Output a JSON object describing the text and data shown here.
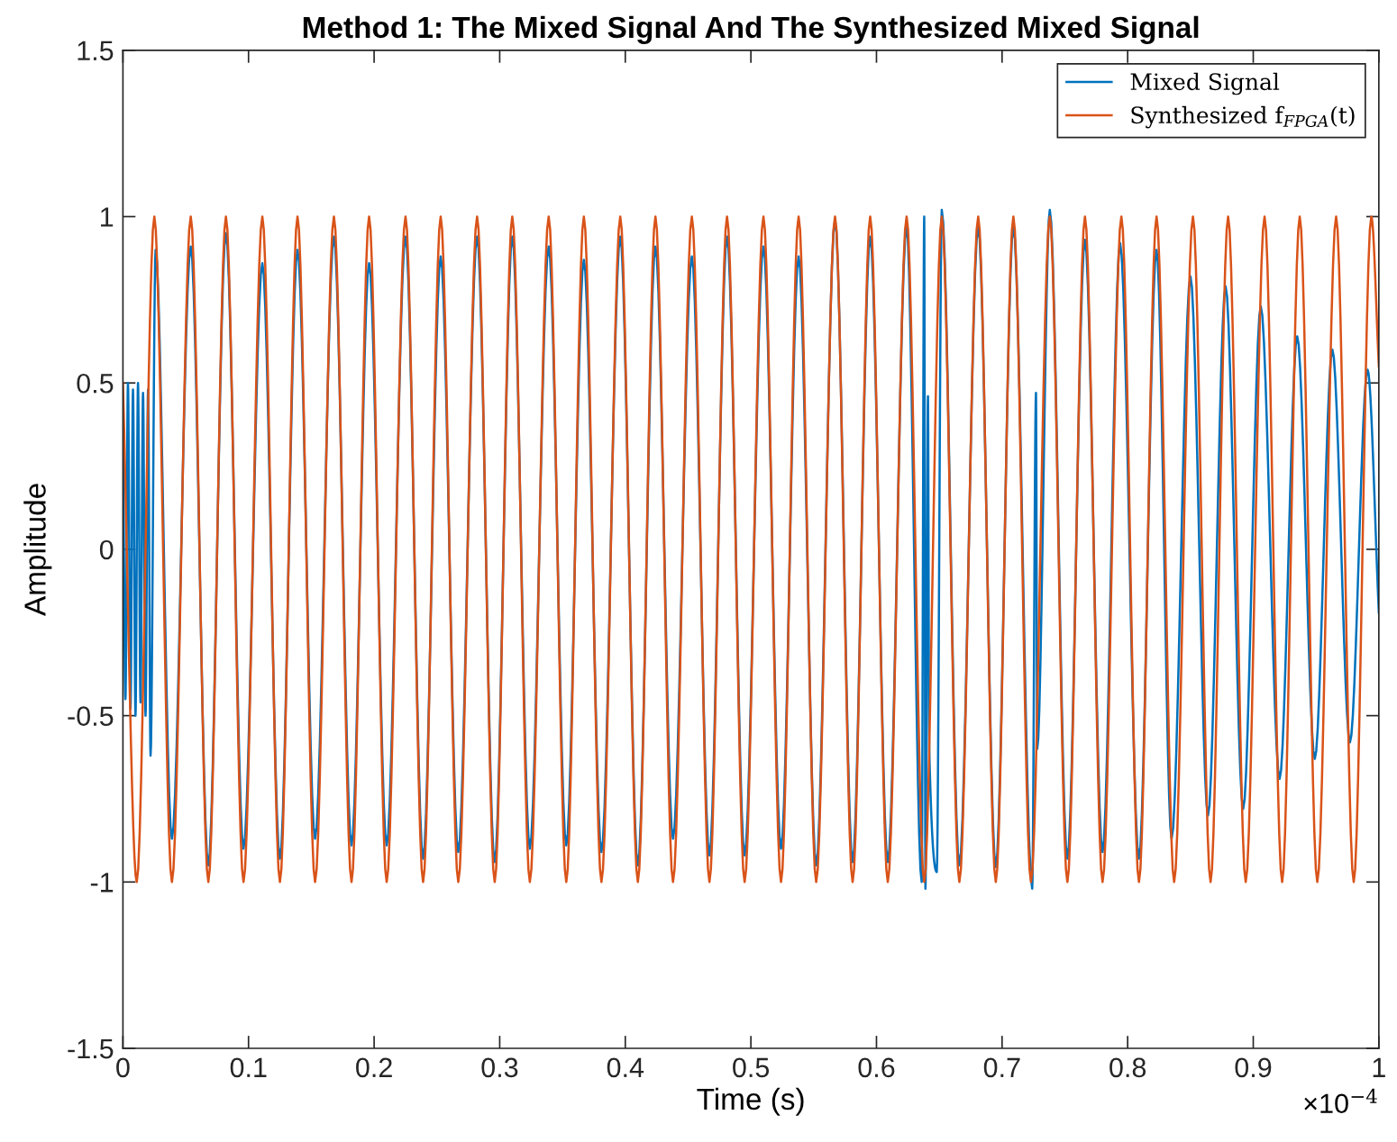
{
  "chart_data": {
    "type": "line",
    "title": "Method 1: The Mixed Signal And The Synthesized Mixed Signal",
    "xlabel": "Time (s)",
    "ylabel": "Amplitude",
    "xlim": [
      0,
      1
    ],
    "xticks": [
      0,
      0.1,
      0.2,
      0.3,
      0.4,
      0.5,
      0.6,
      0.7,
      0.8,
      0.9,
      1
    ],
    "ylim": [
      -1.5,
      1.5
    ],
    "yticks": [
      -1.5,
      -1,
      -0.5,
      0,
      0.5,
      1,
      1.5
    ],
    "annotations": [
      "×10$^{−4}$"
    ],
    "grid": false,
    "legend": "top right",
    "marker": "none",
    "line_style": "solid",
    "series": [
      {
        "name": "Mixed Signal",
        "color": "#0072bd",
        "x": [
          0,
          0.002,
          0.004,
          0.006,
          0.008,
          0.01,
          0.012,
          0.014,
          0.016,
          0.018,
          0.02,
          0.022,
          0.026,
          0.039,
          0.054,
          0.068,
          0.082,
          0.096,
          0.111,
          0.125,
          0.139,
          0.153,
          0.168,
          0.182,
          0.196,
          0.21,
          0.225,
          0.239,
          0.253,
          0.267,
          0.282,
          0.296,
          0.31,
          0.324,
          0.339,
          0.353,
          0.367,
          0.381,
          0.396,
          0.41,
          0.424,
          0.438,
          0.453,
          0.467,
          0.481,
          0.495,
          0.51,
          0.524,
          0.538,
          0.552,
          0.567,
          0.581,
          0.595,
          0.609,
          0.624,
          0.636,
          0.638,
          0.639,
          0.641,
          0.642,
          0.648,
          0.652,
          0.666,
          0.681,
          0.695,
          0.709,
          0.724,
          0.727,
          0.728,
          0.738,
          0.752,
          0.766,
          0.78,
          0.794,
          0.809,
          0.823,
          0.835,
          0.85,
          0.864,
          0.878,
          0.892,
          0.906,
          0.921,
          0.935,
          0.949,
          0.963,
          0.977,
          0.991,
          1
        ],
        "values": [
          0.45,
          -0.45,
          0.5,
          -0.48,
          0.48,
          -0.5,
          0.5,
          -0.46,
          0.47,
          -0.5,
          0.48,
          -0.62,
          0.9,
          -0.87,
          0.91,
          -0.95,
          0.95,
          -0.9,
          0.86,
          -0.93,
          0.9,
          -0.87,
          0.94,
          -0.89,
          0.86,
          -0.89,
          0.94,
          -0.93,
          0.88,
          -0.91,
          0.94,
          -0.94,
          0.94,
          -0.9,
          0.91,
          -0.89,
          0.87,
          -0.91,
          0.94,
          -0.95,
          0.91,
          -0.87,
          0.88,
          -0.92,
          0.94,
          -0.92,
          0.91,
          -0.9,
          0.88,
          -0.95,
          0.99,
          -0.94,
          0.94,
          -0.94,
          0.97,
          -1.0,
          1.0,
          -1.02,
          0.46,
          -0.6,
          -0.97,
          1.02,
          -0.95,
          0.97,
          -0.955,
          0.97,
          -1.02,
          0.47,
          -0.6,
          1.02,
          -0.93,
          0.93,
          -0.91,
          0.92,
          -0.93,
          0.9,
          -0.87,
          0.82,
          -0.8,
          0.79,
          -0.78,
          0.73,
          -0.69,
          0.64,
          -0.63,
          0.6,
          -0.58,
          0.54,
          -0.19
        ]
      },
      {
        "name": "Synthesized f$_{FPGA}$(t)",
        "color": "#d95319",
        "x": [
          0,
          0.011,
          0.025,
          0.039,
          0.054,
          0.068,
          0.082,
          0.096,
          0.111,
          0.125,
          0.139,
          0.153,
          0.168,
          0.182,
          0.196,
          0.21,
          0.225,
          0.239,
          0.253,
          0.267,
          0.282,
          0.296,
          0.31,
          0.324,
          0.339,
          0.353,
          0.367,
          0.381,
          0.396,
          0.41,
          0.424,
          0.438,
          0.453,
          0.467,
          0.481,
          0.495,
          0.51,
          0.524,
          0.538,
          0.552,
          0.567,
          0.581,
          0.595,
          0.609,
          0.624,
          0.638,
          0.652,
          0.666,
          0.681,
          0.695,
          0.709,
          0.723,
          0.738,
          0.752,
          0.766,
          0.78,
          0.795,
          0.809,
          0.823,
          0.837,
          0.852,
          0.866,
          0.88,
          0.894,
          0.909,
          0.923,
          0.937,
          0.951,
          0.966,
          0.98,
          0.994,
          1
        ],
        "values": [
          0.5,
          -1,
          1,
          -1,
          1,
          -1,
          1,
          -1,
          1,
          -1,
          1,
          -1,
          1,
          -1,
          1,
          -1,
          1,
          -1,
          1,
          -1,
          1,
          -1,
          1,
          -1,
          1,
          -1,
          1,
          -1,
          1,
          -1,
          1,
          -1,
          1,
          -1,
          1,
          -1,
          1,
          -1,
          1,
          -1,
          1,
          -1,
          1,
          -1,
          1,
          -1,
          1,
          -1,
          1,
          -1,
          1,
          -1,
          1,
          -1,
          1,
          -1,
          1,
          -1,
          1,
          -1,
          1,
          -1,
          1,
          -1,
          1,
          -1,
          1,
          -1,
          1,
          -1,
          1,
          0.55
        ]
      }
    ]
  }
}
